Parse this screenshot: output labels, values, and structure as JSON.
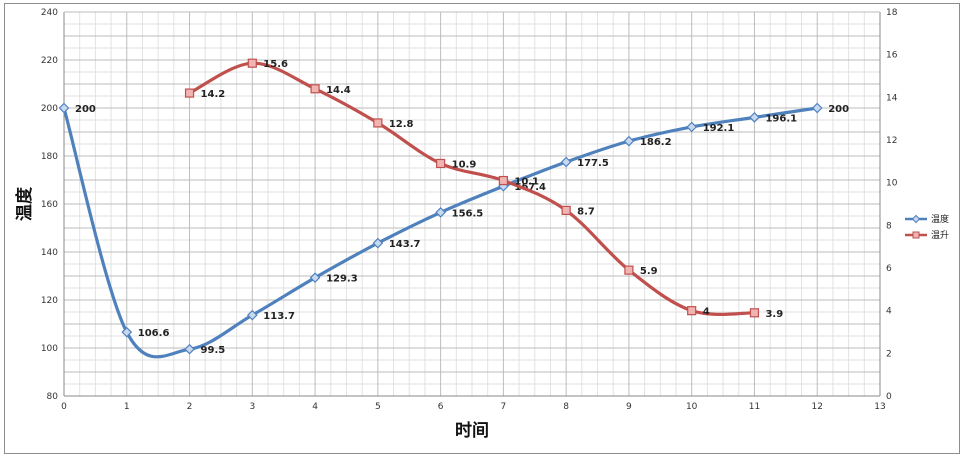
{
  "chart_data": {
    "type": "line",
    "xlabel": "时间",
    "ylabel": "温度",
    "xlim": [
      0,
      13
    ],
    "ylim": [
      80,
      240
    ],
    "y2lim": [
      0,
      18
    ],
    "x_ticks": [
      0,
      1,
      2,
      3,
      4,
      5,
      6,
      7,
      8,
      9,
      10,
      11,
      12,
      13
    ],
    "y_ticks": [
      80,
      100,
      120,
      140,
      160,
      180,
      200,
      220,
      240
    ],
    "y2_ticks": [
      0,
      2,
      4,
      6,
      8,
      10,
      12,
      14,
      16,
      18
    ],
    "grid": true,
    "minor_grid": true,
    "legend_position": "right",
    "series": [
      {
        "name": "温度",
        "axis": "left",
        "color": "#4f81bd",
        "marker": "diamond",
        "smooth": true,
        "x": [
          0,
          1,
          2,
          3,
          4,
          5,
          6,
          7,
          8,
          9,
          10,
          11,
          12
        ],
        "values": [
          200,
          106.6,
          99.5,
          113.7,
          129.3,
          143.7,
          156.5,
          167.4,
          177.5,
          186.2,
          192.1,
          196.1,
          200
        ],
        "labels": [
          "200",
          "106.6",
          "99.5",
          "113.7",
          "129.3",
          "143.7",
          "156.5",
          "167.4",
          "177.5",
          "186.2",
          "192.1",
          "196.1",
          "200"
        ]
      },
      {
        "name": "温升",
        "axis": "right",
        "color": "#c0504d",
        "marker": "square",
        "smooth": true,
        "x": [
          2,
          3,
          4,
          5,
          6,
          7,
          8,
          9,
          10,
          11
        ],
        "values": [
          14.2,
          15.6,
          14.4,
          12.8,
          10.9,
          10.1,
          8.7,
          5.9,
          4,
          3.9
        ],
        "labels": [
          "14.2",
          "15.6",
          "14.4",
          "12.8",
          "10.9",
          "10.1",
          "8.7",
          "5.9",
          "4",
          "3.9"
        ]
      }
    ]
  }
}
